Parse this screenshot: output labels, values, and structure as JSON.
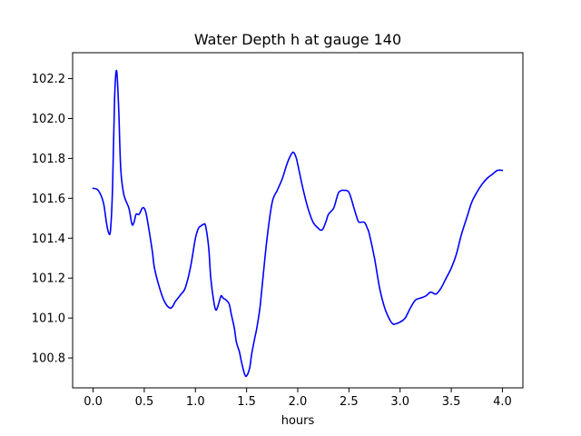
{
  "chart_data": {
    "type": "line",
    "title": "Water Depth h at gauge 140",
    "xlabel": "hours",
    "ylabel": "",
    "xlim": [
      -0.2,
      4.2
    ],
    "ylim": [
      100.65,
      102.33
    ],
    "xticks": [
      0.0,
      0.5,
      1.0,
      1.5,
      2.0,
      2.5,
      3.0,
      3.5,
      4.0
    ],
    "xtick_labels": [
      "0.0",
      "0.5",
      "1.0",
      "1.5",
      "2.0",
      "2.5",
      "3.0",
      "3.5",
      "4.0"
    ],
    "yticks": [
      100.8,
      101.0,
      101.2,
      101.4,
      101.6,
      101.8,
      102.0,
      102.2
    ],
    "ytick_labels": [
      "100.8",
      "101.0",
      "101.2",
      "101.4",
      "101.6",
      "101.8",
      "102.0",
      "102.2"
    ],
    "grid": false,
    "series": [
      {
        "name": "",
        "color": "#0000ff",
        "x": [
          0.0,
          0.05,
          0.1,
          0.13,
          0.15,
          0.17,
          0.19,
          0.21,
          0.23,
          0.25,
          0.27,
          0.3,
          0.35,
          0.38,
          0.4,
          0.42,
          0.45,
          0.48,
          0.5,
          0.52,
          0.55,
          0.58,
          0.6,
          0.65,
          0.7,
          0.75,
          0.78,
          0.8,
          0.83,
          0.86,
          0.9,
          0.95,
          1.0,
          1.03,
          1.05,
          1.08,
          1.1,
          1.13,
          1.15,
          1.18,
          1.2,
          1.22,
          1.25,
          1.27,
          1.3,
          1.33,
          1.35,
          1.38,
          1.4,
          1.43,
          1.45,
          1.48,
          1.5,
          1.53,
          1.55,
          1.58,
          1.6,
          1.63,
          1.65,
          1.7,
          1.75,
          1.8,
          1.85,
          1.9,
          1.95,
          1.98,
          2.0,
          2.05,
          2.1,
          2.15,
          2.2,
          2.23,
          2.25,
          2.28,
          2.3,
          2.35,
          2.38,
          2.4,
          2.43,
          2.45,
          2.5,
          2.55,
          2.58,
          2.6,
          2.65,
          2.68,
          2.7,
          2.75,
          2.8,
          2.85,
          2.9,
          2.93,
          2.95,
          3.0,
          3.05,
          3.1,
          3.15,
          3.2,
          3.25,
          3.3,
          3.35,
          3.4,
          3.45,
          3.5,
          3.55,
          3.6,
          3.65,
          3.7,
          3.75,
          3.8,
          3.85,
          3.9,
          3.95,
          4.0
        ],
        "values": [
          101.65,
          101.64,
          101.58,
          101.48,
          101.43,
          101.44,
          101.65,
          102.1,
          102.24,
          102.05,
          101.75,
          101.62,
          101.55,
          101.47,
          101.48,
          101.52,
          101.52,
          101.55,
          101.55,
          101.52,
          101.43,
          101.33,
          101.25,
          101.15,
          101.08,
          101.05,
          101.06,
          101.08,
          101.1,
          101.12,
          101.15,
          101.25,
          101.4,
          101.45,
          101.46,
          101.47,
          101.46,
          101.35,
          101.2,
          101.08,
          101.04,
          101.06,
          101.11,
          101.1,
          101.09,
          101.07,
          101.02,
          100.95,
          100.88,
          100.83,
          100.78,
          100.72,
          100.71,
          100.75,
          100.82,
          100.9,
          100.95,
          101.05,
          101.15,
          101.4,
          101.58,
          101.64,
          101.7,
          101.78,
          101.83,
          101.81,
          101.77,
          101.65,
          101.55,
          101.48,
          101.45,
          101.44,
          101.45,
          101.49,
          101.52,
          101.55,
          101.6,
          101.63,
          101.64,
          101.64,
          101.63,
          101.55,
          101.5,
          101.48,
          101.48,
          101.45,
          101.42,
          101.3,
          101.15,
          101.05,
          100.99,
          100.97,
          100.97,
          100.98,
          101.0,
          101.05,
          101.09,
          101.1,
          101.11,
          101.13,
          101.12,
          101.15,
          101.2,
          101.25,
          101.32,
          101.42,
          101.5,
          101.58,
          101.63,
          101.67,
          101.7,
          101.72,
          101.74,
          101.74
        ]
      }
    ]
  }
}
